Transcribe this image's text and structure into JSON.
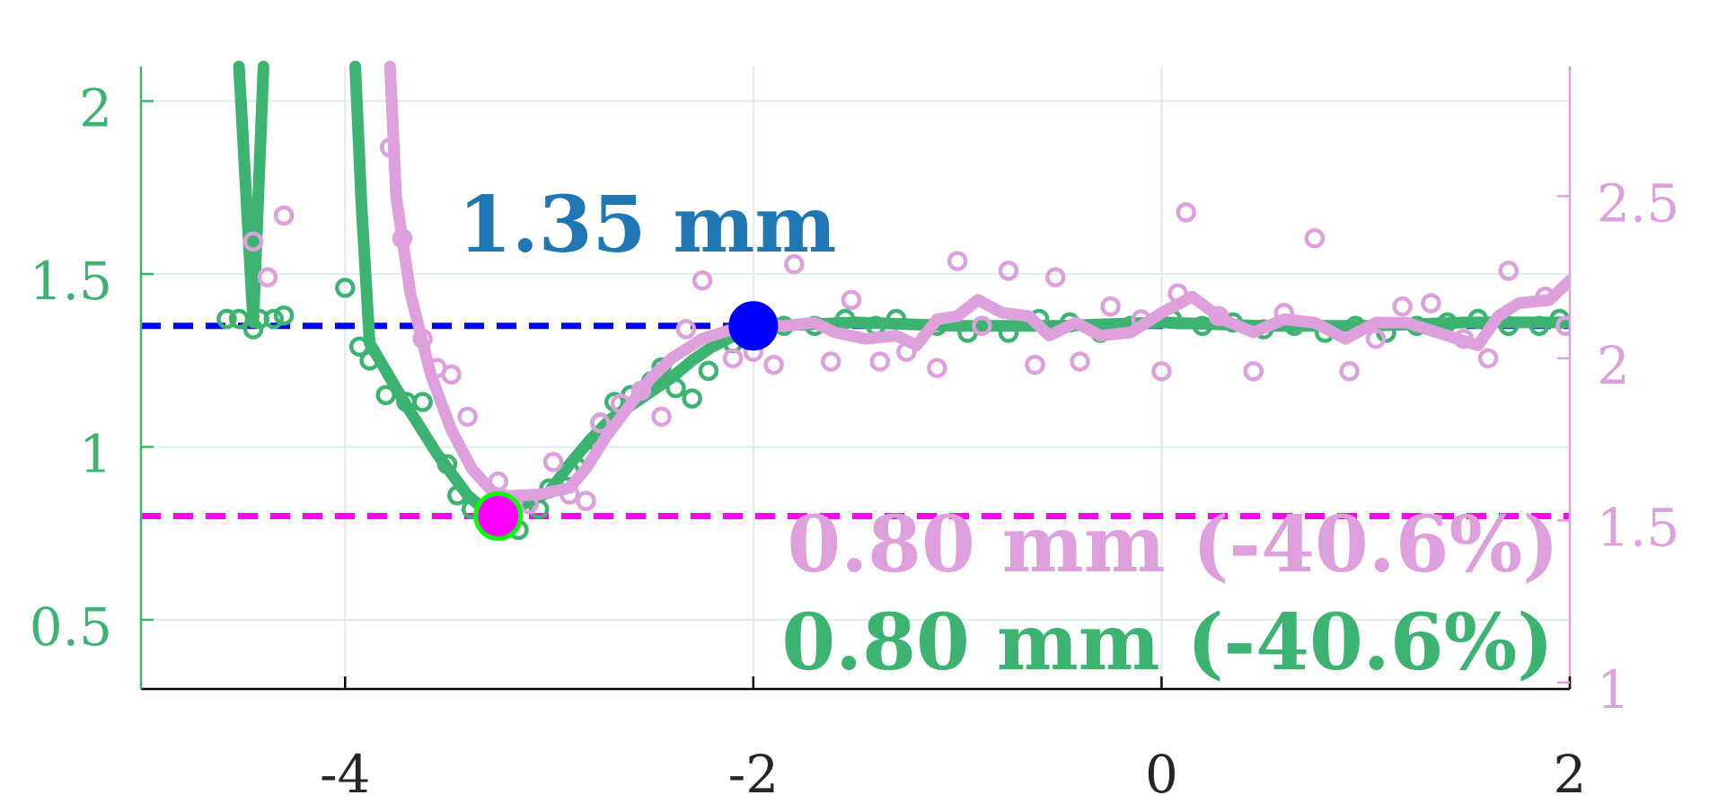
{
  "chart_data": {
    "type": "line",
    "title": "",
    "xlabel": "",
    "ylabel": "",
    "y2label": "",
    "xlim": [
      -5,
      2
    ],
    "ylim": [
      0.3,
      2.1
    ],
    "y2lim": [
      0.98,
      2.9
    ],
    "xticks": [
      "-4",
      "-2",
      "0",
      "2"
    ],
    "xtick_values": [
      -4,
      -2,
      0,
      2
    ],
    "yticks_left": [
      "0.5",
      "1",
      "1.5",
      "2"
    ],
    "ytick_left_values": [
      0.5,
      1,
      1.5,
      2
    ],
    "yticks_right": [
      "1",
      "1.5",
      "2",
      "2.5"
    ],
    "ytick_right_values": [
      1,
      1.5,
      2,
      2.5
    ],
    "grid": true,
    "colors": {
      "green": "#3cb371",
      "pink": "#dda0dd",
      "blue": "#0000ff",
      "magenta": "#ff00ff",
      "annot_blue": "#1f77b4",
      "grid": "#e0ece8",
      "axis": "#000000"
    },
    "reference_lines": [
      {
        "y": 1.35,
        "color": "#0000ff",
        "style": "dashed"
      },
      {
        "y": 0.8,
        "color": "#ff00ff",
        "style": "dashed"
      }
    ],
    "markers": [
      {
        "x": -2.0,
        "y": 1.35,
        "color": "#0000ff",
        "edge": "#0000ff"
      },
      {
        "x": -3.25,
        "y": 0.8,
        "color": "#ff00ff",
        "edge": "#00ff00"
      }
    ],
    "annotations": {
      "baseline": "1.35 mm",
      "pink_min": "0.80 mm (-40.6%)",
      "green_min": "0.80 mm (-40.6%)"
    },
    "series": [
      {
        "axis": "left",
        "color": "#3cb371",
        "kind": "line",
        "segments": [
          [
            [
              -4.52,
              2.1
            ],
            [
              -4.45,
              1.36
            ],
            [
              -4.4,
              2.1
            ]
          ],
          [
            [
              -3.95,
              2.1
            ],
            [
              -3.92,
              1.7
            ],
            [
              -3.88,
              1.3
            ],
            [
              -3.8,
              1.22
            ],
            [
              -3.7,
              1.12
            ],
            [
              -3.55,
              0.98
            ],
            [
              -3.4,
              0.86
            ],
            [
              -3.3,
              0.81
            ],
            [
              -3.2,
              0.82
            ],
            [
              -3.1,
              0.84
            ],
            [
              -3.0,
              0.87
            ],
            [
              -2.9,
              0.95
            ],
            [
              -2.8,
              1.02
            ],
            [
              -2.7,
              1.08
            ],
            [
              -2.6,
              1.12
            ],
            [
              -2.5,
              1.16
            ],
            [
              -2.4,
              1.2
            ],
            [
              -2.3,
              1.25
            ],
            [
              -2.2,
              1.29
            ],
            [
              -2.1,
              1.32
            ],
            [
              -2.0,
              1.34
            ],
            [
              -1.9,
              1.35
            ],
            [
              -1.5,
              1.36
            ],
            [
              -1.0,
              1.35
            ],
            [
              -0.5,
              1.35
            ],
            [
              0,
              1.36
            ],
            [
              0.5,
              1.35
            ],
            [
              1.0,
              1.35
            ],
            [
              1.5,
              1.36
            ],
            [
              2.0,
              1.36
            ]
          ]
        ]
      },
      {
        "axis": "left",
        "color": "#3cb371",
        "kind": "scatter",
        "points": [
          [
            -4.58,
            1.37
          ],
          [
            -4.52,
            1.37
          ],
          [
            -4.45,
            1.34
          ],
          [
            -4.42,
            1.37
          ],
          [
            -4.35,
            1.37
          ],
          [
            -4.3,
            1.38
          ],
          [
            -4.0,
            1.46
          ],
          [
            -3.93,
            1.29
          ],
          [
            -3.88,
            1.25
          ],
          [
            -3.8,
            1.15
          ],
          [
            -3.7,
            1.13
          ],
          [
            -3.62,
            1.13
          ],
          [
            -3.5,
            0.95
          ],
          [
            -3.45,
            0.86
          ],
          [
            -3.38,
            0.82
          ],
          [
            -3.3,
            0.82
          ],
          [
            -3.15,
            0.76
          ],
          [
            -3.05,
            0.82
          ],
          [
            -3.0,
            0.88
          ],
          [
            -2.9,
            0.93
          ],
          [
            -2.82,
            0.98
          ],
          [
            -2.75,
            1.07
          ],
          [
            -2.68,
            1.13
          ],
          [
            -2.6,
            1.15
          ],
          [
            -2.5,
            1.19
          ],
          [
            -2.45,
            1.23
          ],
          [
            -2.38,
            1.17
          ],
          [
            -2.3,
            1.14
          ],
          [
            -2.22,
            1.22
          ],
          [
            -2.1,
            1.3
          ],
          [
            -2.0,
            1.33
          ],
          [
            -1.85,
            1.35
          ],
          [
            -1.7,
            1.35
          ],
          [
            -1.55,
            1.37
          ],
          [
            -1.4,
            1.35
          ],
          [
            -1.3,
            1.37
          ],
          [
            -1.1,
            1.35
          ],
          [
            -0.95,
            1.33
          ],
          [
            -0.75,
            1.33
          ],
          [
            -0.6,
            1.37
          ],
          [
            -0.45,
            1.36
          ],
          [
            -0.3,
            1.33
          ],
          [
            -0.15,
            1.35
          ],
          [
            0.05,
            1.37
          ],
          [
            0.2,
            1.35
          ],
          [
            0.35,
            1.36
          ],
          [
            0.5,
            1.34
          ],
          [
            0.65,
            1.35
          ],
          [
            0.8,
            1.33
          ],
          [
            0.95,
            1.35
          ],
          [
            1.1,
            1.33
          ],
          [
            1.25,
            1.35
          ],
          [
            1.4,
            1.36
          ],
          [
            1.55,
            1.37
          ],
          [
            1.7,
            1.35
          ],
          [
            1.85,
            1.35
          ],
          [
            1.95,
            1.37
          ]
        ]
      },
      {
        "axis": "right",
        "color": "#dda0dd",
        "kind": "line",
        "segments": [
          [
            [
              -3.78,
              2.9
            ],
            [
              -3.75,
              2.5
            ],
            [
              -3.68,
              2.2
            ],
            [
              -3.58,
              1.95
            ],
            [
              -3.48,
              1.78
            ],
            [
              -3.38,
              1.66
            ],
            [
              -3.28,
              1.59
            ],
            [
              -3.2,
              1.575
            ],
            [
              -3.05,
              1.58
            ],
            [
              -2.9,
              1.6
            ],
            [
              -2.82,
              1.66
            ],
            [
              -2.72,
              1.76
            ],
            [
              -2.6,
              1.86
            ],
            [
              -2.5,
              1.94
            ],
            [
              -2.4,
              2.0
            ],
            [
              -2.25,
              2.06
            ],
            [
              -2.1,
              2.09
            ],
            [
              -2.0,
              2.1
            ],
            [
              -1.85,
              2.1
            ],
            [
              -1.7,
              2.11
            ],
            [
              -1.6,
              2.08
            ],
            [
              -1.45,
              2.06
            ],
            [
              -1.3,
              2.07
            ],
            [
              -1.2,
              2.04
            ],
            [
              -1.1,
              2.12
            ],
            [
              -1.0,
              2.13
            ],
            [
              -0.9,
              2.18
            ],
            [
              -0.78,
              2.14
            ],
            [
              -0.65,
              2.13
            ],
            [
              -0.55,
              2.07
            ],
            [
              -0.42,
              2.11
            ],
            [
              -0.3,
              2.07
            ],
            [
              -0.15,
              2.08
            ],
            [
              0,
              2.14
            ],
            [
              0.15,
              2.19
            ],
            [
              0.3,
              2.12
            ],
            [
              0.45,
              2.08
            ],
            [
              0.6,
              2.12
            ],
            [
              0.75,
              2.11
            ],
            [
              0.9,
              2.06
            ],
            [
              1.05,
              2.11
            ],
            [
              1.2,
              2.11
            ],
            [
              1.3,
              2.09
            ],
            [
              1.45,
              2.06
            ],
            [
              1.55,
              2.04
            ],
            [
              1.65,
              2.13
            ],
            [
              1.75,
              2.17
            ],
            [
              1.9,
              2.18
            ],
            [
              2.0,
              2.24
            ]
          ]
        ]
      },
      {
        "axis": "right",
        "color": "#dda0dd",
        "kind": "scatter",
        "points": [
          [
            -4.45,
            2.36
          ],
          [
            -4.38,
            2.25
          ],
          [
            -4.3,
            2.44
          ],
          [
            -3.78,
            2.65
          ],
          [
            -3.72,
            2.37
          ],
          [
            -3.62,
            2.06
          ],
          [
            -3.55,
            1.97
          ],
          [
            -3.48,
            1.95
          ],
          [
            -3.4,
            1.82
          ],
          [
            -3.25,
            1.62
          ],
          [
            -3.1,
            1.55
          ],
          [
            -2.98,
            1.68
          ],
          [
            -2.9,
            1.58
          ],
          [
            -2.82,
            1.56
          ],
          [
            -2.75,
            1.8
          ],
          [
            -2.65,
            1.86
          ],
          [
            -2.55,
            1.9
          ],
          [
            -2.45,
            1.82
          ],
          [
            -2.33,
            2.09
          ],
          [
            -2.25,
            2.24
          ],
          [
            -2.1,
            2.0
          ],
          [
            -2.0,
            2.02
          ],
          [
            -1.9,
            1.98
          ],
          [
            -1.8,
            2.29
          ],
          [
            -1.62,
            1.99
          ],
          [
            -1.52,
            2.18
          ],
          [
            -1.38,
            1.99
          ],
          [
            -1.25,
            2.02
          ],
          [
            -1.1,
            1.97
          ],
          [
            -1.0,
            2.3
          ],
          [
            -0.88,
            2.1
          ],
          [
            -0.75,
            2.27
          ],
          [
            -0.62,
            1.98
          ],
          [
            -0.52,
            2.25
          ],
          [
            -0.4,
            1.99
          ],
          [
            -0.25,
            2.16
          ],
          [
            -0.1,
            2.12
          ],
          [
            0.0,
            1.96
          ],
          [
            0.08,
            2.2
          ],
          [
            0.12,
            2.45
          ],
          [
            0.28,
            2.13
          ],
          [
            0.45,
            1.96
          ],
          [
            0.6,
            2.14
          ],
          [
            0.75,
            2.37
          ],
          [
            0.92,
            1.96
          ],
          [
            1.05,
            2.06
          ],
          [
            1.18,
            2.16
          ],
          [
            1.32,
            2.17
          ],
          [
            1.48,
            2.06
          ],
          [
            1.6,
            2.0
          ],
          [
            1.7,
            2.27
          ],
          [
            1.88,
            2.19
          ],
          [
            1.98,
            2.1
          ]
        ]
      }
    ]
  }
}
